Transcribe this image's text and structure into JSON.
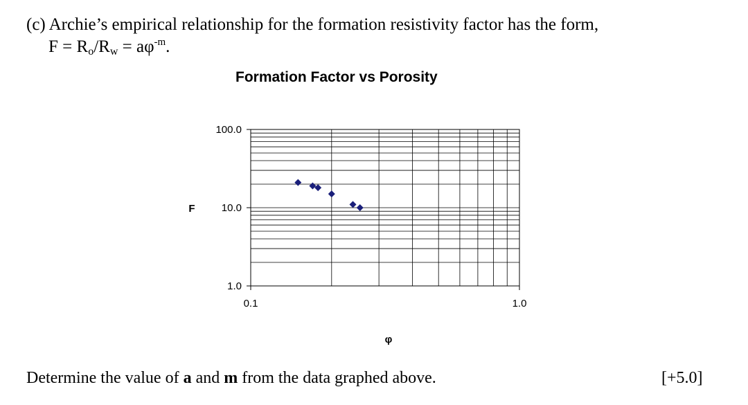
{
  "question": {
    "line1": "(c) Archie’s empirical relationship for the formation resistivity factor has the form,",
    "formula": {
      "f": "F = R",
      "o_sub": "o",
      "slash_r": "/R",
      "w_sub": "w",
      "eq": " = aφ",
      "exp": "-m",
      "end": "."
    },
    "determine_prefix": "Determine the value of ",
    "a": "a",
    "and": " and ",
    "m": "m",
    "determine_suffix": " from the data graphed above.",
    "marks": "[+5.0]"
  },
  "chart_data": {
    "type": "scatter",
    "title": "Formation Factor vs Porosity",
    "xlabel": "φ",
    "ylabel": "F",
    "xscale": "log",
    "yscale": "log",
    "xlim": [
      0.1,
      1.0
    ],
    "ylim": [
      1.0,
      100.0
    ],
    "x_tick_labels": [
      "0.1",
      "1.0"
    ],
    "y_tick_labels": [
      "100.0",
      "10.0",
      "1.0"
    ],
    "grid": true,
    "marker_color": "#1a1f7a",
    "points": [
      {
        "x": 0.15,
        "y": 21.0
      },
      {
        "x": 0.17,
        "y": 19.0
      },
      {
        "x": 0.178,
        "y": 18.0
      },
      {
        "x": 0.2,
        "y": 15.0
      },
      {
        "x": 0.24,
        "y": 11.0
      },
      {
        "x": 0.255,
        "y": 10.0
      }
    ]
  }
}
